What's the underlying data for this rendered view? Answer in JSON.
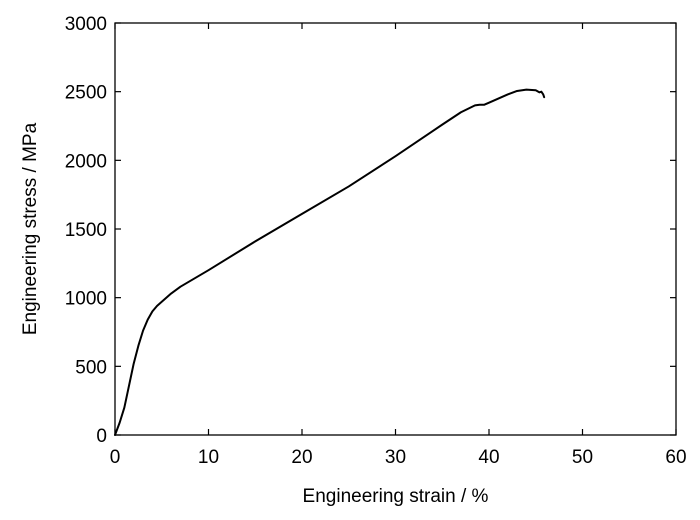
{
  "chart_data": {
    "type": "line",
    "title": "",
    "xlabel": "Engineering strain / %",
    "ylabel": "Engineering stress / MPa",
    "xlim": [
      0,
      60
    ],
    "ylim": [
      0,
      3000
    ],
    "xticks": [
      0,
      10,
      20,
      30,
      40,
      50,
      60
    ],
    "yticks": [
      0,
      500,
      1000,
      1500,
      2000,
      2500,
      3000
    ],
    "grid": false,
    "legend": "none",
    "series": [
      {
        "color": "#000000",
        "x": [
          0,
          0.5,
          1.0,
          1.5,
          2.0,
          2.5,
          3.0,
          3.5,
          4.0,
          4.5,
          5.0,
          5.5,
          6.0,
          7.0,
          8.0,
          10.0,
          15.0,
          20.0,
          25.0,
          30.0,
          35.0,
          37.0,
          38.5,
          39.0,
          39.5,
          40.0,
          41.0,
          42.0,
          43.0,
          44.0,
          45.0,
          45.4,
          45.6,
          45.8,
          45.9
        ],
        "y": [
          0,
          90,
          200,
          360,
          520,
          650,
          760,
          840,
          900,
          940,
          970,
          1000,
          1030,
          1080,
          1120,
          1200,
          1410,
          1610,
          1810,
          2030,
          2260,
          2350,
          2400,
          2405,
          2405,
          2420,
          2450,
          2480,
          2505,
          2515,
          2510,
          2495,
          2500,
          2480,
          2460
        ]
      }
    ]
  }
}
